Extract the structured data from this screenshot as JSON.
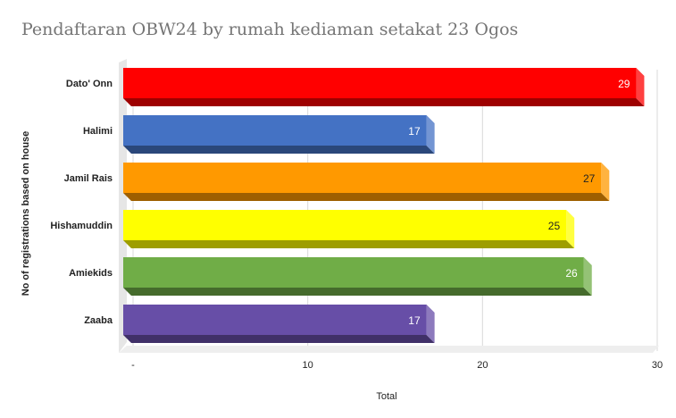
{
  "chart_data": {
    "type": "bar",
    "orientation": "horizontal",
    "title": "Pendaftaran OBW24 by rumah kediaman setakat 23 Ogos",
    "xlabel": "Total",
    "ylabel": "No of registrations based on house",
    "categories": [
      "Dato' Onn",
      "Halimi",
      "Jamil Rais",
      "Hishamuddin",
      "Amiekids",
      "Zaaba"
    ],
    "values": [
      29,
      17,
      27,
      25,
      26,
      17
    ],
    "data_labels": [
      "29",
      "17",
      "27",
      "25",
      "26",
      "17"
    ],
    "colors": [
      "#ff0000",
      "#4472c4",
      "#ff9900",
      "#ffff00",
      "#70ad47",
      "#674ea7"
    ],
    "xlim": [
      0,
      30
    ],
    "x_ticks": [
      0,
      10,
      20,
      30
    ],
    "x_tick_labels": [
      "-",
      "10",
      "20",
      "30"
    ],
    "grid": true,
    "legend": "none",
    "style": "3d"
  }
}
